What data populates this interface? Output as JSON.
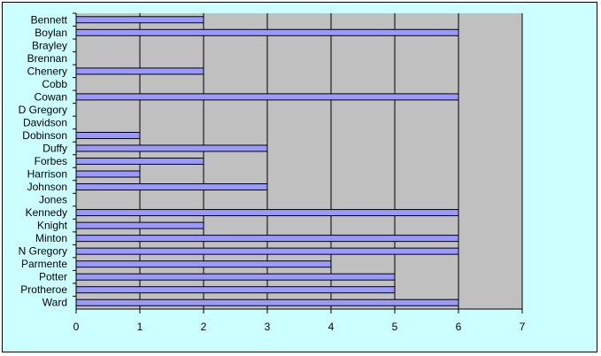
{
  "chart_data": {
    "type": "bar",
    "orientation": "horizontal",
    "categories": [
      "Bennett",
      "Boylan",
      "Brayley",
      "Brennan",
      "Chenery",
      "Cobb",
      "Cowan",
      "D Gregory",
      "Davidson",
      "Dobinson",
      "Duffy",
      "Forbes",
      "Harrison",
      "Johnson",
      "Jones",
      "Kennedy",
      "Knight",
      "Minton",
      "N Gregory",
      "Parmente",
      "Potter",
      "Protheroe",
      "Ward"
    ],
    "values": [
      2,
      6,
      0,
      0,
      2,
      0,
      6,
      0,
      0,
      1,
      3,
      2,
      1,
      3,
      0,
      6,
      2,
      6,
      6,
      4,
      5,
      5,
      6
    ],
    "xlim": [
      0,
      7
    ],
    "xticks": [
      "0",
      "1",
      "2",
      "3",
      "4",
      "5",
      "6",
      "7"
    ],
    "title": "",
    "xlabel": "",
    "ylabel": "",
    "grid": "vertical",
    "legend": "none",
    "colors": {
      "chart_area": "#ccffff",
      "plot_area": "#c0c0c0",
      "bar_fill": "#9999ff",
      "bar_edge": "#000000",
      "gridline": "#000000"
    }
  }
}
